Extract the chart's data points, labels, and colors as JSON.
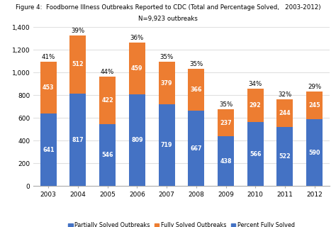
{
  "years": [
    "2003",
    "2004",
    "2005",
    "2006",
    "2007",
    "2008",
    "2009",
    "2010",
    "2011",
    "2012"
  ],
  "partially_solved": [
    641,
    817,
    546,
    809,
    719,
    667,
    438,
    566,
    522,
    590
  ],
  "fully_solved": [
    453,
    512,
    422,
    459,
    379,
    366,
    237,
    292,
    244,
    245
  ],
  "pct_fully_solved": [
    "41%",
    "39%",
    "44%",
    "36%",
    "35%",
    "35%",
    "35%",
    "34%",
    "32%",
    "29%"
  ],
  "bar_color_partial": "#4472C4",
  "bar_color_full": "#ED7D31",
  "title_line1": "Figure 4:  Foodborne Illness Outbreaks Reported to CDC (Total and Percentage Solved,   2003-2012)",
  "title_line2": "N=9,923 outbreaks",
  "ylim": [
    0,
    1400
  ],
  "yticks": [
    0,
    200,
    400,
    600,
    800,
    1000,
    1200,
    1400
  ],
  "legend_labels": [
    "Partially Solved Outbreaks",
    "Fully Solved Outbreaks",
    "Percent Fully Solved"
  ],
  "background_color": "#FFFFFF",
  "grid_color": "#E0E0E0",
  "title_fontsize": 6.2,
  "tick_fontsize": 6.5,
  "label_fontsize": 5.8,
  "pct_fontsize": 6.2
}
